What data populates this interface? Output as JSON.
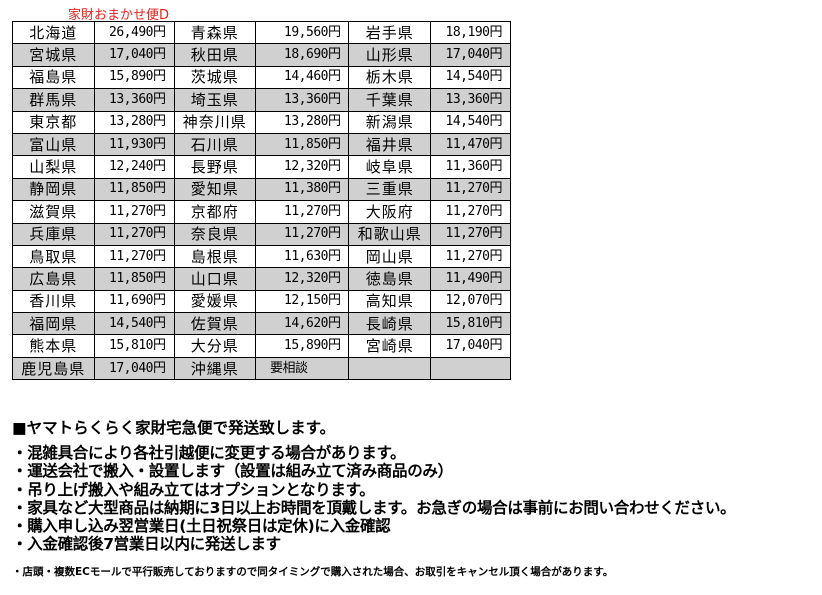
{
  "title": "家財おまかせ便D",
  "rates": [
    [
      [
        "北海道",
        "26,490円"
      ],
      [
        "青森県",
        "19,560円"
      ],
      [
        "岩手県",
        "18,190円"
      ]
    ],
    [
      [
        "宮城県",
        "17,040円"
      ],
      [
        "秋田県",
        "18,690円"
      ],
      [
        "山形県",
        "17,040円"
      ]
    ],
    [
      [
        "福島県",
        "15,890円"
      ],
      [
        "茨城県",
        "14,460円"
      ],
      [
        "栃木県",
        "14,540円"
      ]
    ],
    [
      [
        "群馬県",
        "13,360円"
      ],
      [
        "埼玉県",
        "13,360円"
      ],
      [
        "千葉県",
        "13,360円"
      ]
    ],
    [
      [
        "東京都",
        "13,280円"
      ],
      [
        "神奈川県",
        "13,280円"
      ],
      [
        "新潟県",
        "14,540円"
      ]
    ],
    [
      [
        "富山県",
        "11,930円"
      ],
      [
        "石川県",
        "11,850円"
      ],
      [
        "福井県",
        "11,470円"
      ]
    ],
    [
      [
        "山梨県",
        "12,240円"
      ],
      [
        "長野県",
        "12,320円"
      ],
      [
        "岐阜県",
        "11,360円"
      ]
    ],
    [
      [
        "静岡県",
        "11,850円"
      ],
      [
        "愛知県",
        "11,380円"
      ],
      [
        "三重県",
        "11,270円"
      ]
    ],
    [
      [
        "滋賀県",
        "11,270円"
      ],
      [
        "京都府",
        "11,270円"
      ],
      [
        "大阪府",
        "11,270円"
      ]
    ],
    [
      [
        "兵庫県",
        "11,270円"
      ],
      [
        "奈良県",
        "11,270円"
      ],
      [
        "和歌山県",
        "11,270円"
      ]
    ],
    [
      [
        "鳥取県",
        "11,270円"
      ],
      [
        "島根県",
        "11,630円"
      ],
      [
        "岡山県",
        "11,270円"
      ]
    ],
    [
      [
        "広島県",
        "11,850円"
      ],
      [
        "山口県",
        "12,320円"
      ],
      [
        "徳島県",
        "11,490円"
      ]
    ],
    [
      [
        "香川県",
        "11,690円"
      ],
      [
        "愛媛県",
        "12,150円"
      ],
      [
        "高知県",
        "12,070円"
      ]
    ],
    [
      [
        "福岡県",
        "14,540円"
      ],
      [
        "佐賀県",
        "14,620円"
      ],
      [
        "長崎県",
        "15,810円"
      ]
    ],
    [
      [
        "熊本県",
        "15,810円"
      ],
      [
        "大分県",
        "15,890円"
      ],
      [
        "宮崎県",
        "17,040円"
      ]
    ],
    [
      [
        "鹿児島県",
        "17,040円"
      ],
      [
        "沖縄県",
        "要相談"
      ],
      [
        "",
        ""
      ]
    ]
  ],
  "notes": {
    "heading": "■ヤマトらくらく家財宅急便で発送致します。",
    "items": [
      "・混雑具合により各社引越便に変更する場合があります。",
      "・運送会社で搬入・設置します（設置は組み立て済み商品のみ）",
      "・吊り上げ搬入や組み立てはオプションとなります。",
      "・家具など大型商品は納期に3日以上お時間を頂戴します。お急ぎの場合は事前にお問い合わせください。",
      "・購入申し込み翌営業日(土日祝祭日は定休)に入金確認",
      "・入金確認後7営業日以内に発送します"
    ],
    "footnote": "・店頭・複数ECモールで平行販売しておりますので同タイミングで購入された場合、お取引をキャンセル頂く場合があります。"
  },
  "colors": {
    "title": "#e8201c",
    "row_alt": "#d0d0d0"
  }
}
